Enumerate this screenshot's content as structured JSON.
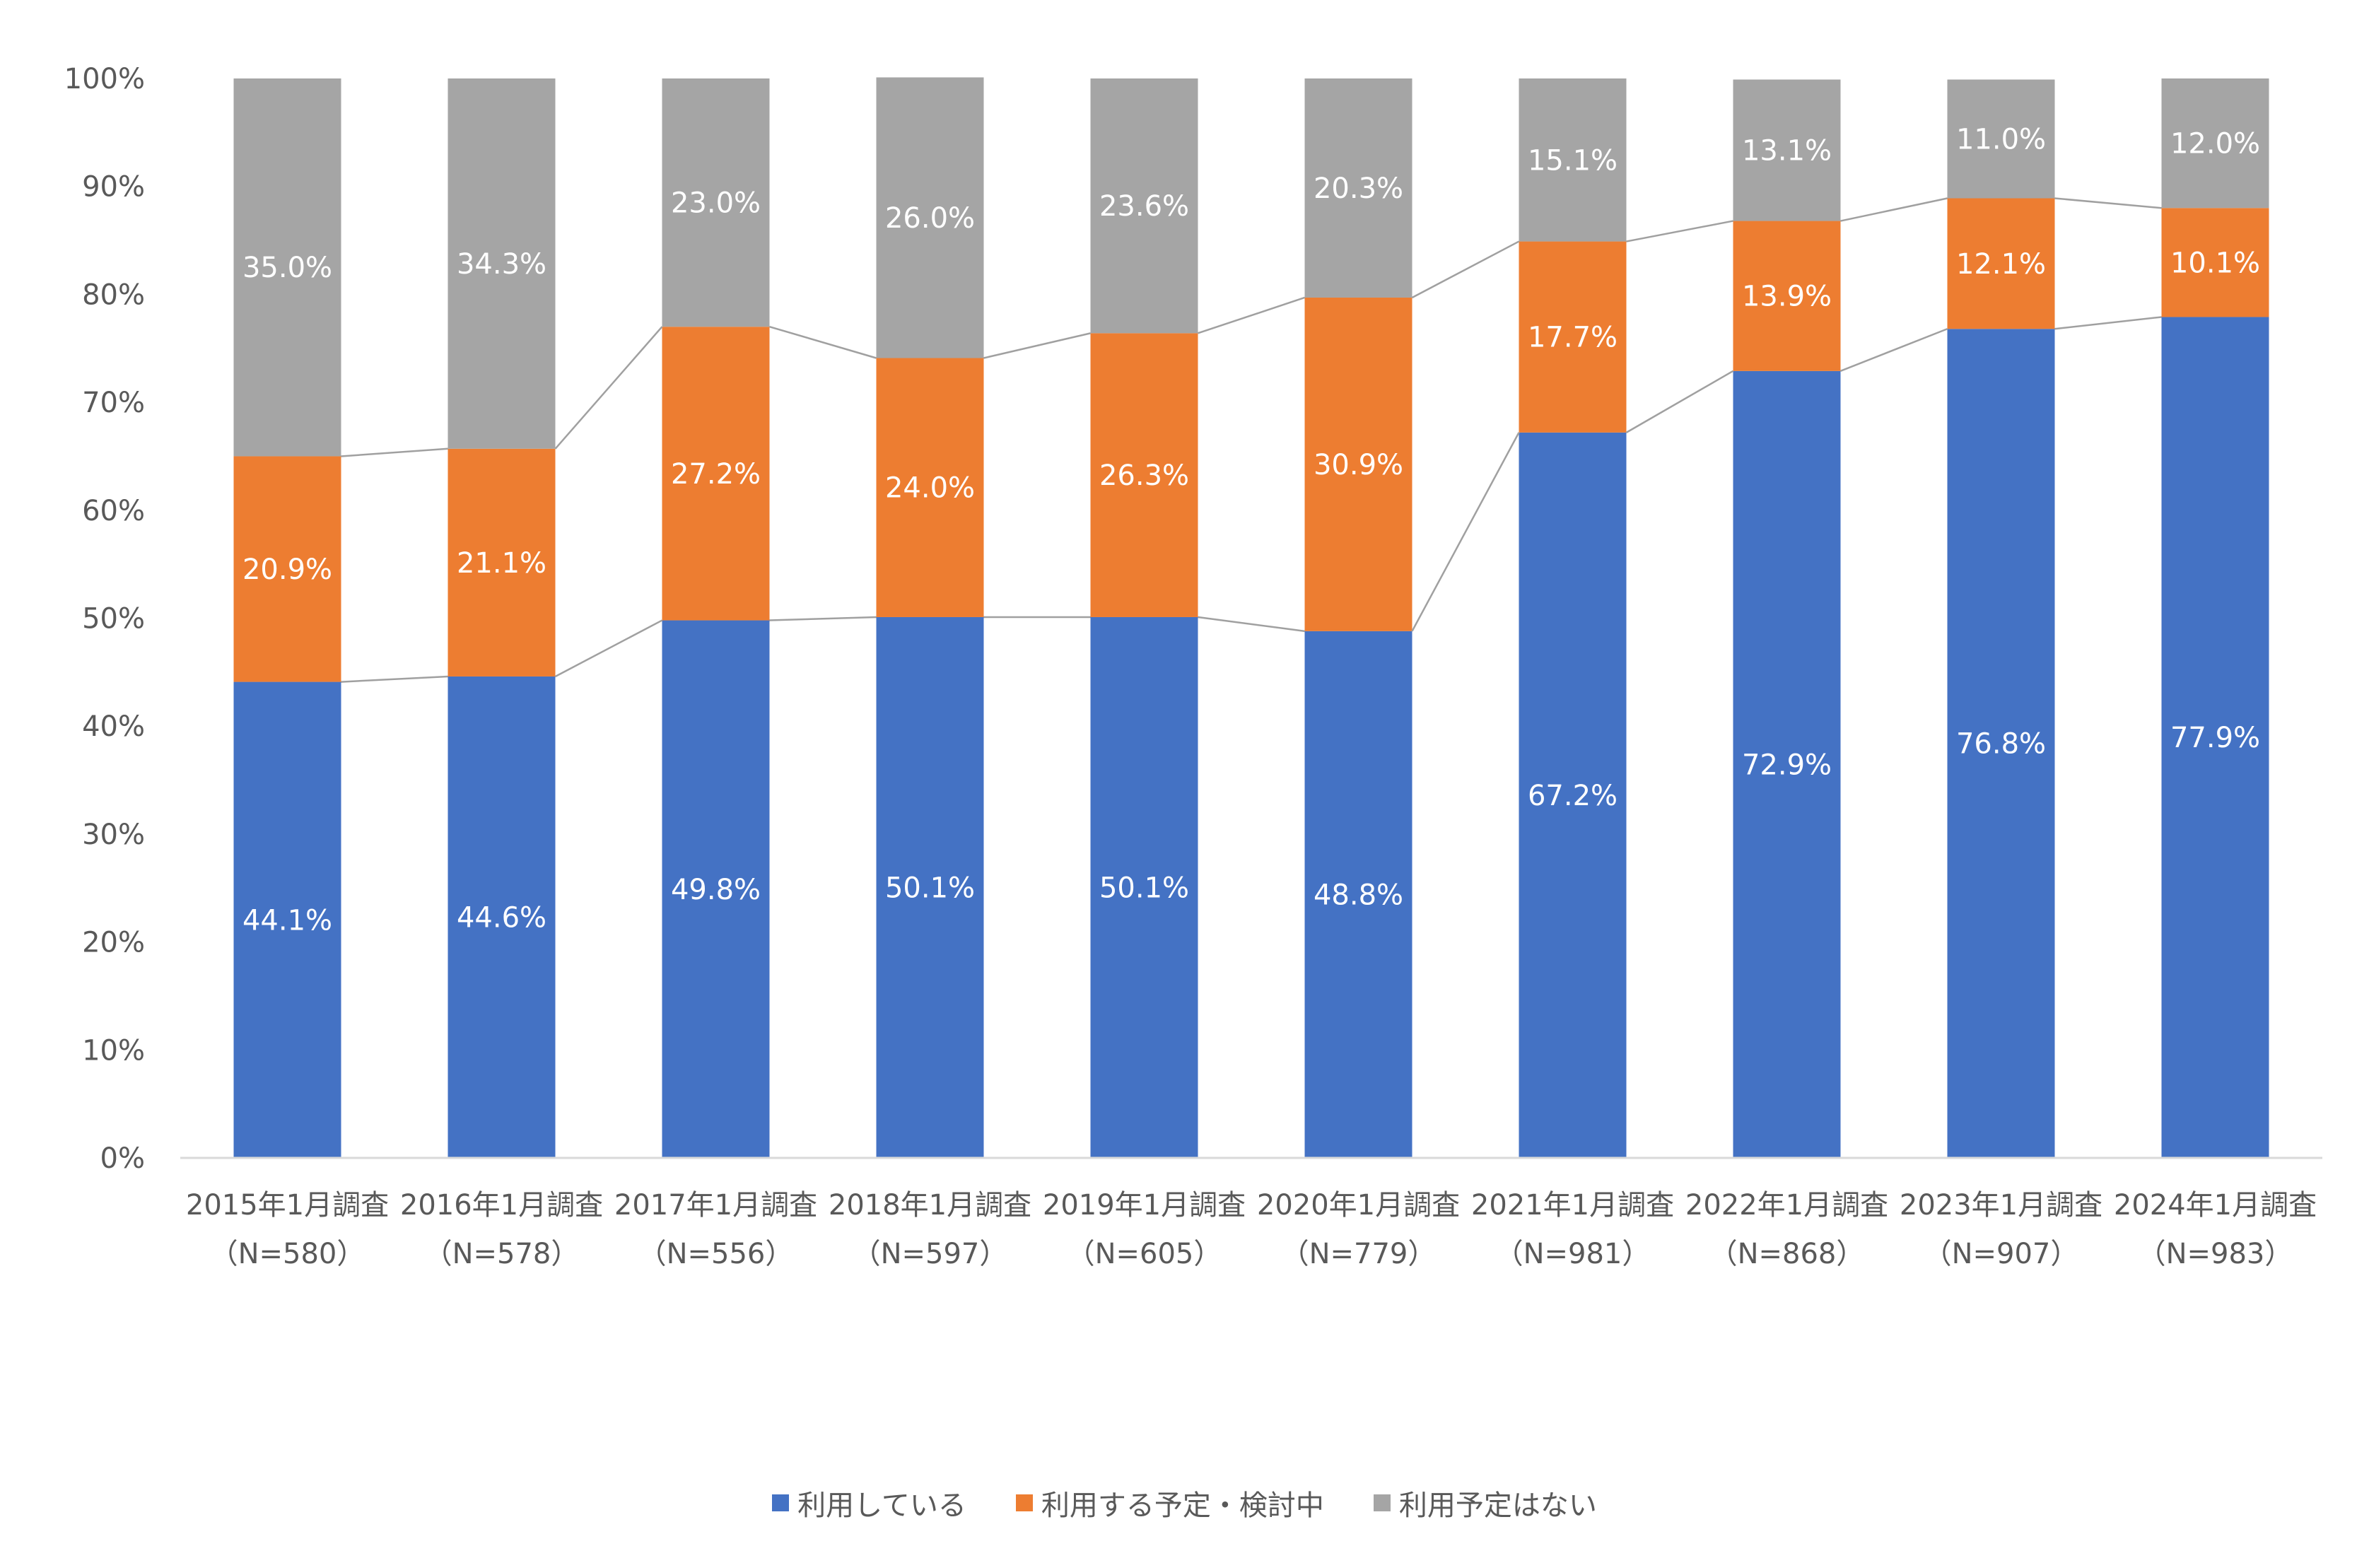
{
  "chart_data": {
    "type": "bar",
    "stacked": true,
    "categories": [
      "2015年1月調査",
      "2016年1月調査",
      "2017年1月調査",
      "2018年1月調査",
      "2019年1月調査",
      "2020年1月調査",
      "2021年1月調査",
      "2022年1月調査",
      "2023年1月調査",
      "2024年1月調査"
    ],
    "category_sublabels": [
      "（N=580）",
      "（N=578）",
      "（N=556）",
      "（N=597）",
      "（N=605）",
      "（N=779）",
      "（N=981）",
      "（N=868）",
      "（N=907）",
      "（N=983）"
    ],
    "series": [
      {
        "name": "利用している",
        "color": "#4472C4",
        "values": [
          44.1,
          44.6,
          49.8,
          50.1,
          50.1,
          48.8,
          67.2,
          72.9,
          76.8,
          77.9
        ],
        "labels": [
          "44.1%",
          "44.6%",
          "49.8%",
          "50.1%",
          "50.1%",
          "48.8%",
          "67.2%",
          "72.9%",
          "76.8%",
          "77.9%"
        ]
      },
      {
        "name": "利用する予定・検討中",
        "color": "#ED7D31",
        "values": [
          20.9,
          21.1,
          27.2,
          24.0,
          26.3,
          30.9,
          17.7,
          13.9,
          12.1,
          10.1
        ],
        "labels": [
          "20.9%",
          "21.1%",
          "27.2%",
          "24.0%",
          "26.3%",
          "30.9%",
          "17.7%",
          "13.9%",
          "12.1%",
          "10.1%"
        ]
      },
      {
        "name": "利用予定はない",
        "color": "#A5A5A5",
        "values": [
          35.0,
          34.3,
          23.0,
          26.0,
          23.6,
          20.3,
          15.1,
          13.1,
          11.0,
          12.0
        ],
        "labels": [
          "35.0%",
          "34.3%",
          "23.0%",
          "26.0%",
          "23.6%",
          "20.3%",
          "15.1%",
          "13.1%",
          "11.0%",
          "12.0%"
        ]
      }
    ],
    "ylim": [
      0,
      100
    ],
    "yticks": [
      "0%",
      "10%",
      "20%",
      "30%",
      "40%",
      "50%",
      "60%",
      "70%",
      "80%",
      "90%",
      "100%"
    ],
    "series_lines": true,
    "grid": false,
    "legend": "bottom"
  }
}
